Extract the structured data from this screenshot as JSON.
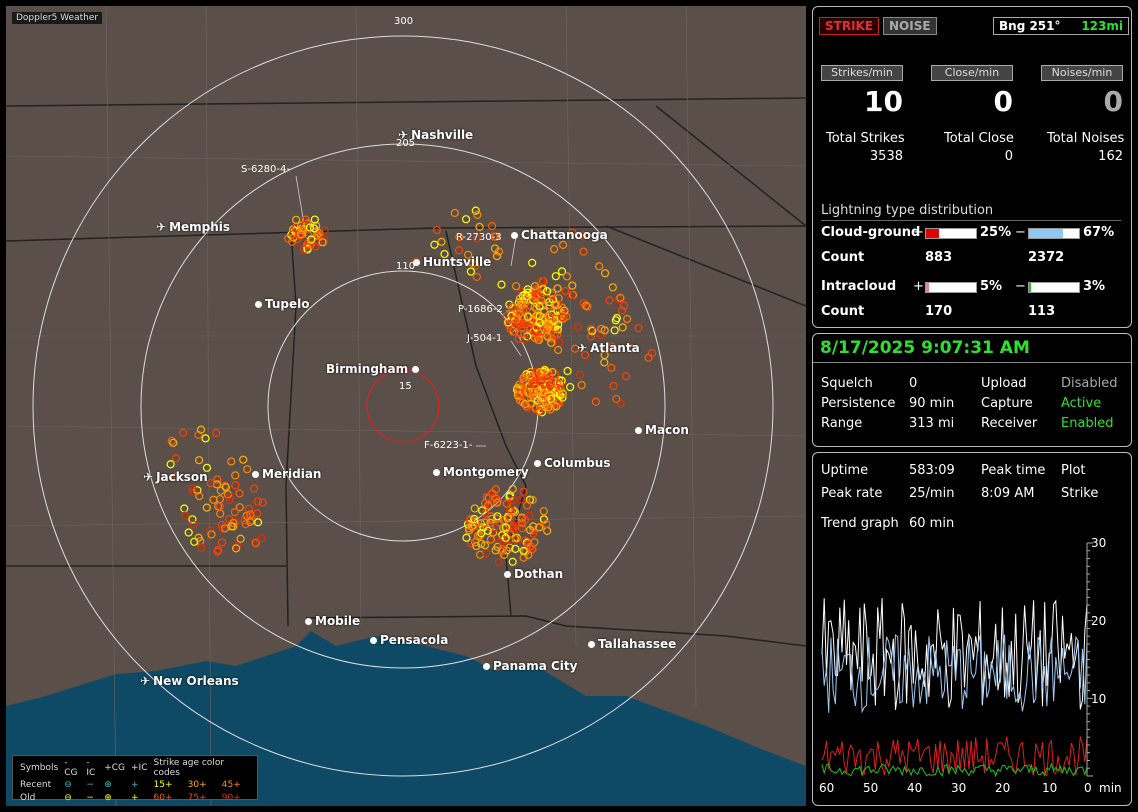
{
  "map": {
    "tag": "Doppler5 Weather",
    "ring_labels": [
      "300",
      "205",
      "110",
      "15"
    ],
    "cities": [
      {
        "name": "Nashville",
        "icon": "airport"
      },
      {
        "name": "Memphis",
        "icon": "airport"
      },
      {
        "name": "Chattanooga",
        "icon": "dot"
      },
      {
        "name": "Huntsville",
        "icon": "dot"
      },
      {
        "name": "Tupelo",
        "icon": "dot"
      },
      {
        "name": "Atlanta",
        "icon": "airport"
      },
      {
        "name": "Birmingham",
        "icon": "dot"
      },
      {
        "name": "Macon",
        "icon": "dot"
      },
      {
        "name": "Columbus",
        "icon": "dot"
      },
      {
        "name": "Meridian",
        "icon": "dot"
      },
      {
        "name": "Jackson",
        "icon": "airport"
      },
      {
        "name": "Montgomery",
        "icon": "dot"
      },
      {
        "name": "Dothan",
        "icon": "dot"
      },
      {
        "name": "Mobile",
        "icon": "dot"
      },
      {
        "name": "Pensacola",
        "icon": "dot"
      },
      {
        "name": "Tallahassee",
        "icon": "dot"
      },
      {
        "name": "Panama City",
        "icon": "dot"
      },
      {
        "name": "New Orleans",
        "icon": "airport"
      }
    ],
    "storm_labels": [
      "S-6280-4-",
      "R-2730-3",
      "P-1686-2",
      "J-504-1",
      "F-6223-1-"
    ]
  },
  "legend": {
    "header": [
      "Symbols",
      "-CG",
      "-IC",
      "+CG",
      "+IC",
      "Strike age color codes"
    ],
    "recent_label": "Recent",
    "old_label": "Old",
    "recent_ages": [
      "15+",
      "30+",
      "45+"
    ],
    "old_ages": [
      "60+",
      "75+",
      "90+"
    ],
    "age_colors": [
      "#ffff00",
      "#ffb000",
      "#ff8800",
      "#ff6000",
      "#ff4000",
      "#e03000"
    ]
  },
  "status": {
    "strike_button": "STRIKE",
    "noise_button": "NOISE",
    "bearing": "Bng 251°",
    "distance": "123mi",
    "strikes_per_min_label": "Strikes/min",
    "close_per_min_label": "Close/min",
    "noises_per_min_label": "Noises/min",
    "strikes_per_min": "10",
    "close_per_min": "0",
    "noises_per_min": "0",
    "total_strikes_label": "Total Strikes",
    "total_close_label": "Total Close",
    "total_noises_label": "Total Noises",
    "total_strikes": "3538",
    "total_close": "0",
    "total_noises": "162",
    "dist_title": "Lightning type distribution",
    "cg_label": "Cloud-ground",
    "ic_label": "Intracloud",
    "count_label": "Count",
    "plus": "+",
    "minus": "−",
    "cg_pos_pct": "25%",
    "cg_neg_pct": "67%",
    "cg_pos_count": "883",
    "cg_neg_count": "2372",
    "ic_pos_pct": "5%",
    "ic_neg_pct": "3%",
    "ic_pos_count": "170",
    "ic_neg_count": "113",
    "cg_pos_frac": 0.25,
    "cg_neg_frac": 0.67,
    "ic_pos_frac": 0.05,
    "ic_neg_frac": 0.03,
    "colors": {
      "cg_pos": "#e00000",
      "cg_neg": "#8fc8f0",
      "ic_pos": "#e080b0",
      "ic_neg": "#20c020"
    }
  },
  "info": {
    "datetime": "8/17/2025 9:07:31 AM",
    "squelch_label": "Squelch",
    "squelch": "0",
    "persistence_label": "Persistence",
    "persistence": "90 min",
    "range_label": "Range",
    "range": "313 mi",
    "upload_label": "Upload",
    "upload": "Disabled",
    "capture_label": "Capture",
    "capture": "Active",
    "receiver_label": "Receiver",
    "receiver": "Enabled"
  },
  "trend": {
    "uptime_label": "Uptime",
    "uptime": "583:09",
    "peak_time_label": "Peak time",
    "peak_time": "8:09 AM",
    "plot_label": "Plot",
    "plot": "Strike",
    "peak_rate_label": "Peak rate",
    "peak_rate": "25/min",
    "trend_label": "Trend graph",
    "trend_value": "60 min",
    "y_ticks": [
      "30",
      "20",
      "10"
    ],
    "x_ticks": [
      "60",
      "50",
      "40",
      "30",
      "20",
      "10",
      "0"
    ],
    "x_unit": "min"
  }
}
